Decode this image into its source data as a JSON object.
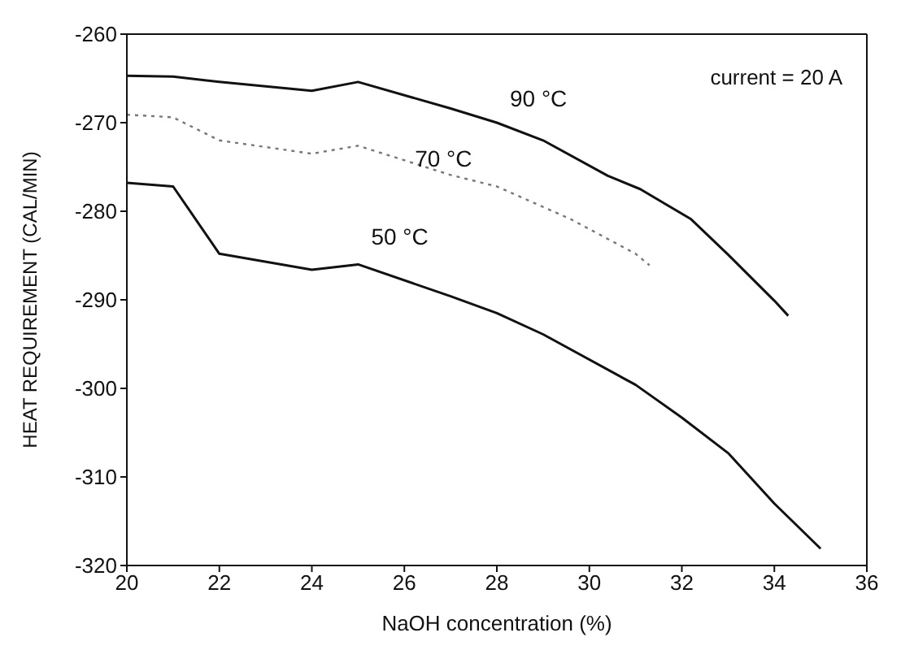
{
  "chart_data": {
    "type": "line",
    "xlabel": "NaOH concentration (%)",
    "ylabel": "HEAT REQUIREMENT (CAL/MIN)",
    "xlim": [
      20,
      36
    ],
    "xticks": [
      20,
      22,
      24,
      26,
      28,
      30,
      32,
      34,
      36
    ],
    "ylim": [
      -320,
      -260
    ],
    "yticks": [
      -320,
      -310,
      -300,
      -290,
      -280,
      -270,
      -260
    ],
    "marker": "none",
    "annotations": [
      "current = 20 A"
    ],
    "series": [
      {
        "name": "90 °C",
        "color": "#111111",
        "line_style": "solid",
        "x": [
          20,
          21,
          22,
          24,
          25,
          27,
          28,
          29,
          30.4,
          31.1,
          32.2,
          33,
          34,
          34.3
        ],
        "values": [
          -264.7,
          -264.8,
          -265.4,
          -266.4,
          -265.4,
          -268.4,
          -270,
          -272,
          -276,
          -277.5,
          -280.9,
          -284.9,
          -290.1,
          -291.8
        ]
      },
      {
        "name": "70 °C",
        "color": "#777777",
        "line_style": "dotted",
        "x": [
          20,
          20.7,
          21,
          22,
          24,
          25,
          27,
          28,
          29.6,
          31,
          31.3
        ],
        "values": [
          -269.1,
          -269.3,
          -269.4,
          -272,
          -273.5,
          -272.6,
          -275.9,
          -277.2,
          -280.9,
          -284.8,
          -286.1
        ]
      },
      {
        "name": "50 °C",
        "color": "#111111",
        "line_style": "solid",
        "x": [
          20,
          21,
          22,
          24,
          25,
          27,
          28,
          29,
          31,
          32,
          33,
          34,
          35
        ],
        "values": [
          -276.8,
          -277.2,
          -284.8,
          -286.6,
          -286,
          -289.6,
          -291.5,
          -293.9,
          -299.6,
          -303.3,
          -307.3,
          -313,
          -318.1
        ]
      }
    ]
  }
}
